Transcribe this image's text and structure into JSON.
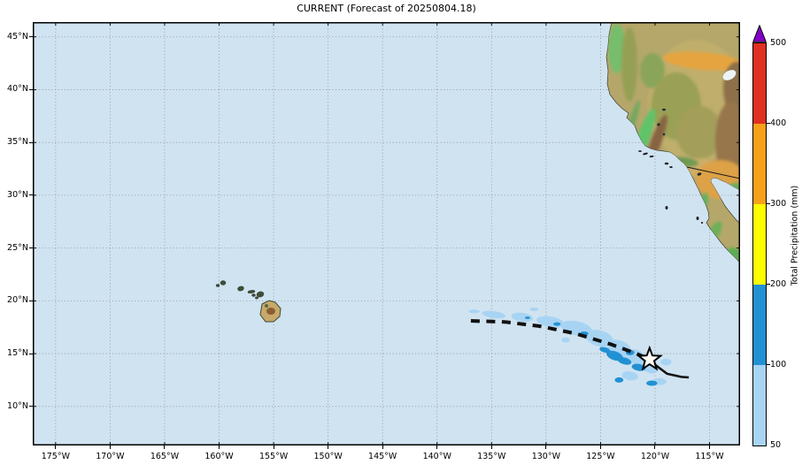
{
  "title": "CURRENT (Forecast of 20250804.18)",
  "map": {
    "ocean_color": "#d0e3f1",
    "grid_color": "#8f8f8f",
    "x_ticks": {
      "values": [
        -175,
        -170,
        -165,
        -160,
        -155,
        -150,
        -145,
        -140,
        -135,
        -130,
        -125,
        -120,
        -115
      ],
      "labels": [
        "175°W",
        "170°W",
        "165°W",
        "160°W",
        "155°W",
        "150°W",
        "145°W",
        "140°W",
        "135°W",
        "130°W",
        "125°W",
        "120°W",
        "115°W"
      ]
    },
    "y_ticks": {
      "values": [
        45,
        40,
        35,
        30,
        25,
        20,
        15,
        10
      ],
      "labels": [
        "45°N",
        "40°N",
        "35°N",
        "30°N",
        "25°N",
        "20°N",
        "15°N",
        "10°N"
      ]
    }
  },
  "colorbar": {
    "label": "Total Precipitation (mm)",
    "tick_labels_top_to_bottom": [
      "500",
      "400",
      "300",
      "200",
      "100",
      "50"
    ],
    "segments_bottom_to_top": [
      {
        "range": "50-100",
        "color": "#a8d4f3"
      },
      {
        "range": "100-200",
        "color": "#2291d3"
      },
      {
        "range": "200-300",
        "color": "#fdfc00"
      },
      {
        "range": "300-400",
        "color": "#f7a118"
      },
      {
        "range": "400-500",
        "color": "#e03020"
      }
    ],
    "over_color": "#8500c8"
  },
  "track_style": {
    "line_color": "#111111",
    "star_fill": "#fffdf5"
  },
  "chart_data": {
    "type": "map",
    "title": "CURRENT (Forecast of 20250804.18)",
    "projection": "equirectangular",
    "extent": {
      "lon_min": -177.1,
      "lon_max": -112.2,
      "lat_min": 6.3,
      "lat_max": 46.4
    },
    "graticule_step_deg": 5,
    "grid_style": "dotted",
    "colorbar_scale_mm": [
      50,
      100,
      200,
      300,
      400,
      500
    ],
    "storm_track": {
      "forecast_track_dashed_lon_lat": [
        [
          -136.9,
          18.1
        ],
        [
          -133.8,
          18.0
        ],
        [
          -130.6,
          17.6
        ],
        [
          -127.3,
          16.9
        ],
        [
          -124.1,
          15.9
        ],
        [
          -121.7,
          15.0
        ],
        [
          -120.8,
          14.6
        ]
      ],
      "current_position_lon_lat": [
        -120.5,
        14.45
      ],
      "analysis_track_solid_lon_lat": [
        [
          -120.5,
          14.45
        ],
        [
          -120.2,
          14.1
        ],
        [
          -118.9,
          13.1
        ],
        [
          -117.6,
          12.8
        ],
        [
          -116.9,
          12.75
        ]
      ]
    },
    "precip_areas": {
      "light_50_100mm": [
        [
          -134.8,
          18.7,
          1.1,
          0.33,
          8
        ],
        [
          -132.2,
          18.45,
          1.0,
          0.42,
          8
        ],
        [
          -129.6,
          18.0,
          1.3,
          0.5,
          10
        ],
        [
          -127.2,
          17.4,
          1.45,
          0.67,
          12
        ],
        [
          -125.1,
          16.45,
          1.3,
          0.75,
          15
        ],
        [
          -123.3,
          15.5,
          1.15,
          0.75,
          20
        ],
        [
          -121.8,
          14.7,
          1.0,
          0.67,
          20
        ],
        [
          -120.4,
          13.75,
          0.8,
          0.6,
          15
        ],
        [
          -122.3,
          12.9,
          0.75,
          0.42,
          10
        ],
        [
          -119.6,
          12.35,
          0.65,
          0.33,
          0
        ],
        [
          -128.2,
          16.3,
          0.4,
          0.25,
          0
        ],
        [
          -131.1,
          19.2,
          0.4,
          0.17,
          0
        ],
        [
          -136.6,
          19.0,
          0.5,
          0.17,
          0
        ],
        [
          -119.0,
          14.2,
          0.5,
          0.33,
          0
        ]
      ],
      "moderate_100_200mm": [
        [
          -123.7,
          14.8,
          0.8,
          0.42,
          20
        ],
        [
          -122.8,
          14.3,
          0.65,
          0.33,
          15
        ],
        [
          -121.5,
          13.7,
          0.65,
          0.33,
          10
        ],
        [
          -124.6,
          15.35,
          0.5,
          0.25,
          15
        ],
        [
          -126.5,
          16.9,
          0.4,
          0.2,
          0
        ],
        [
          -129.0,
          17.8,
          0.33,
          0.17,
          0
        ],
        [
          -123.3,
          12.5,
          0.4,
          0.25,
          0
        ],
        [
          -120.3,
          12.2,
          0.5,
          0.25,
          0
        ],
        [
          -122.3,
          15.1,
          0.4,
          0.25,
          0
        ],
        [
          -131.7,
          18.4,
          0.25,
          0.12,
          0
        ]
      ]
    }
  }
}
